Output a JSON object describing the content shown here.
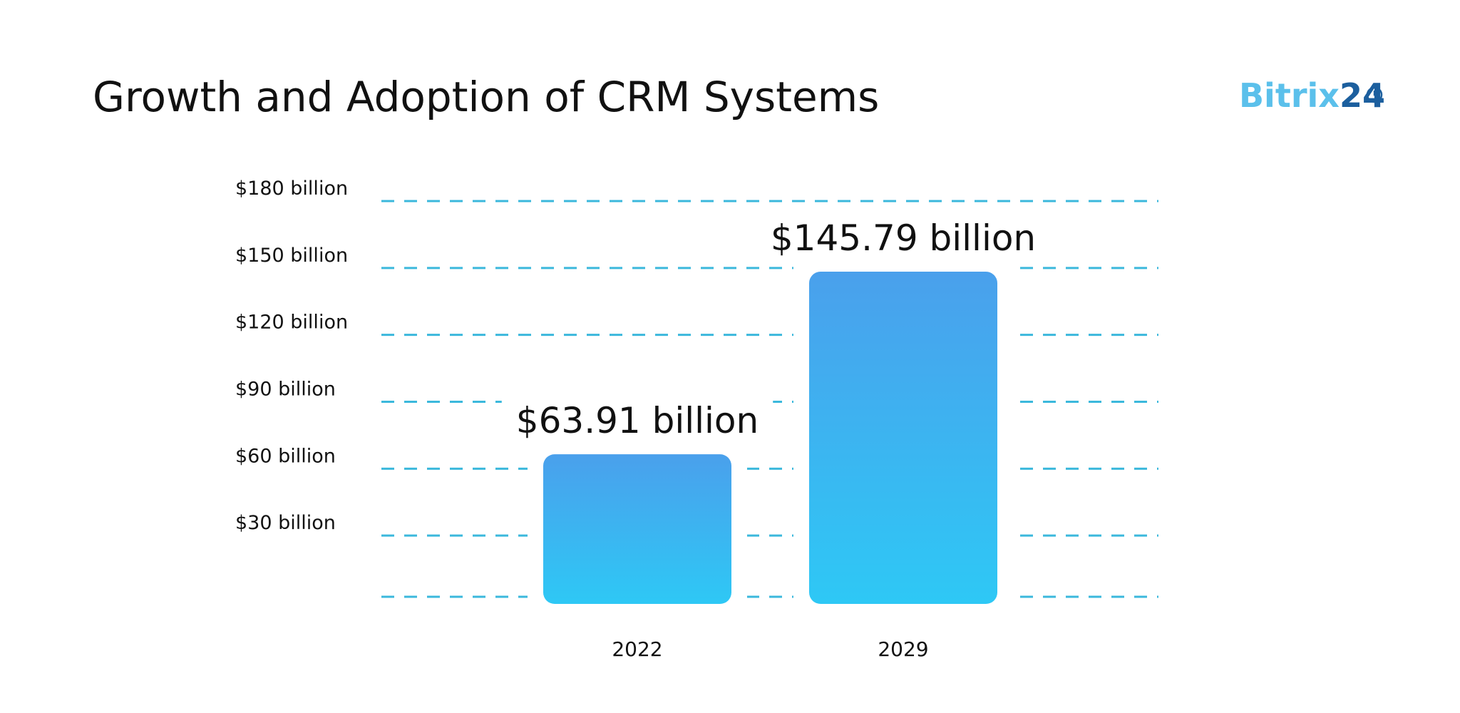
{
  "chart_data": {
    "type": "bar",
    "title": "Growth and Adoption of CRM Systems",
    "categories": [
      "2022",
      "2029"
    ],
    "values": [
      63.91,
      145.79
    ],
    "value_labels": [
      "$63.91 billion",
      "$145.79 billion"
    ],
    "color": [
      "#4aa0ec",
      "#2ec8f5"
    ],
    "grid_color": "#3bb8dc",
    "ylim": [
      0,
      180
    ],
    "yticks": [
      {
        "value": 30,
        "label": "$30 billion"
      },
      {
        "value": 60,
        "label": "$60 billion"
      },
      {
        "value": 90,
        "label": "$90 billion"
      },
      {
        "value": 120,
        "label": "$120 billion"
      },
      {
        "value": 150,
        "label": "$150 billion"
      },
      {
        "value": 180,
        "label": "$180 billion"
      }
    ],
    "grid": true
  },
  "logo": {
    "name": "Bitrix",
    "number": "24"
  }
}
